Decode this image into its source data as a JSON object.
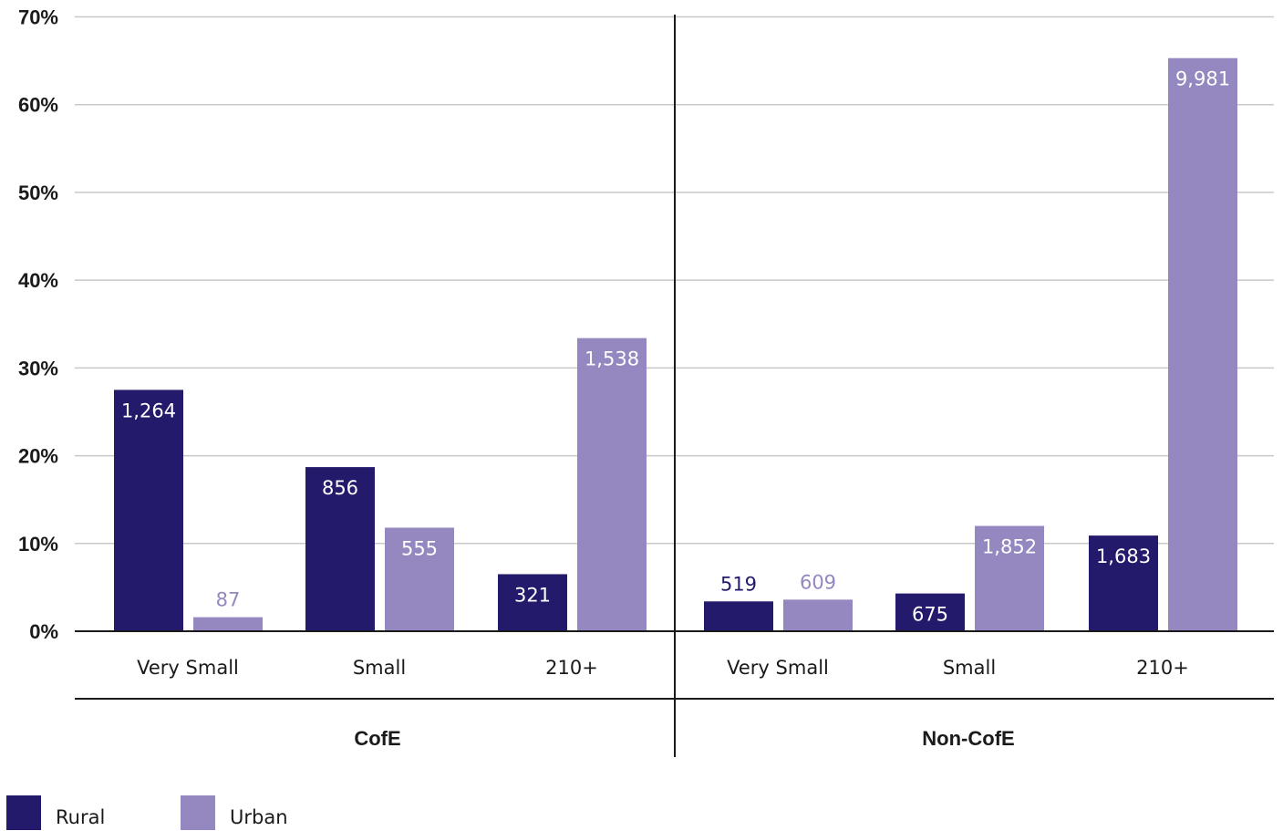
{
  "chart_data": {
    "type": "bar",
    "groups": [
      {
        "label": "CofE",
        "categories": [
          "Very Small",
          "Small",
          "210+"
        ]
      },
      {
        "label": "Non-CofE",
        "categories": [
          "Very Small",
          "Small",
          "210+"
        ]
      }
    ],
    "series": [
      {
        "name": "Rural",
        "color": "#231a6b",
        "values": [
          27.5,
          18.7,
          6.5,
          3.4,
          4.3,
          10.9
        ],
        "labels": [
          "1,264",
          "856",
          "321",
          "519",
          "675",
          "1,683"
        ]
      },
      {
        "name": "Urban",
        "color": "#9587bf",
        "values": [
          1.6,
          11.8,
          33.4,
          3.6,
          12.0,
          65.3
        ],
        "labels": [
          "87",
          "555",
          "1,538",
          "609",
          "1,852",
          "9,981"
        ]
      }
    ],
    "y_ticks": [
      "0%",
      "10%",
      "20%",
      "30%",
      "40%",
      "50%",
      "60%",
      "70%"
    ],
    "ylim": [
      0,
      70
    ],
    "grid": true,
    "legend_position": "bottom-left"
  }
}
